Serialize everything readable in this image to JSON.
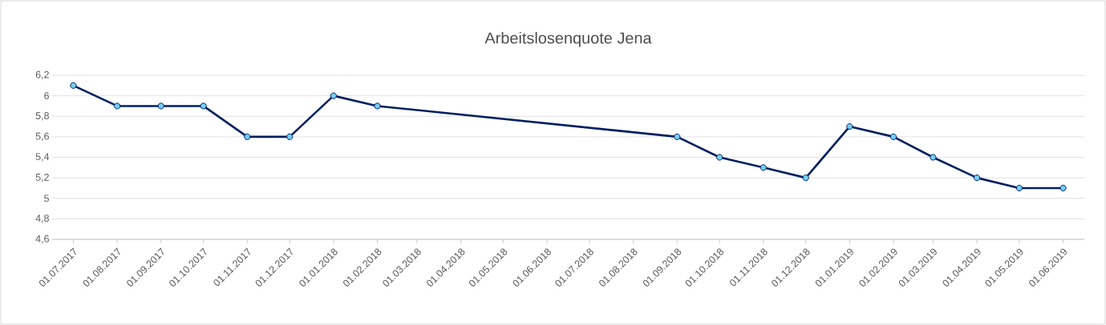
{
  "chart_data": {
    "type": "line",
    "title": "Arbeitslosenquote Jena",
    "x": [
      "2017-07-01",
      "2017-08-01",
      "2017-09-01",
      "2017-10-01",
      "2017-11-01",
      "2017-12-01",
      "2018-01-01",
      "2018-02-01",
      "2018-09-01",
      "2018-10-01",
      "2018-11-01",
      "2018-12-01",
      "2019-01-01",
      "2019-02-01",
      "2019-03-01",
      "2019-04-01",
      "2019-05-01",
      "2019-06-01"
    ],
    "series": [
      {
        "color": "#002060",
        "values": [
          6.1,
          5.9,
          5.9,
          5.9,
          5.6,
          5.6,
          6.0,
          5.9,
          5.6,
          5.4,
          5.3,
          5.2,
          5.7,
          5.6,
          5.4,
          5.2,
          5.1,
          5.1
        ]
      }
    ],
    "marker": "circle",
    "line_style": "solid",
    "grid": "y",
    "xlim": [
      "2017-06-16",
      "2019-06-16"
    ],
    "ylim": [
      4.6,
      6.2
    ],
    "xticks": [
      {
        "value": "2017-07-01",
        "label": "01.07.2017"
      },
      {
        "value": "2017-08-01",
        "label": "01.08.2017"
      },
      {
        "value": "2017-09-01",
        "label": "01.09.2017"
      },
      {
        "value": "2017-10-01",
        "label": "01.10.2017"
      },
      {
        "value": "2017-11-01",
        "label": "01.11.2017"
      },
      {
        "value": "2017-12-01",
        "label": "01.12.2017"
      },
      {
        "value": "2018-01-01",
        "label": "01.01.2018"
      },
      {
        "value": "2018-02-01",
        "label": "01.02.2018"
      },
      {
        "value": "2018-03-01",
        "label": "01.03.2018"
      },
      {
        "value": "2018-04-01",
        "label": "01.04.2018"
      },
      {
        "value": "2018-05-01",
        "label": "01.05.2018"
      },
      {
        "value": "2018-06-01",
        "label": "01.06.2018"
      },
      {
        "value": "2018-07-01",
        "label": "01.07.2018"
      },
      {
        "value": "2018-08-01",
        "label": "01.08.2018"
      },
      {
        "value": "2018-09-01",
        "label": "01.09.2018"
      },
      {
        "value": "2018-10-01",
        "label": "01.10.2018"
      },
      {
        "value": "2018-11-01",
        "label": "01.11.2018"
      },
      {
        "value": "2018-12-01",
        "label": "01.12.2018"
      },
      {
        "value": "2019-01-01",
        "label": "01.01.2019"
      },
      {
        "value": "2019-02-01",
        "label": "01.02.2019"
      },
      {
        "value": "2019-03-01",
        "label": "01.03.2019"
      },
      {
        "value": "2019-04-01",
        "label": "01.04.2019"
      },
      {
        "value": "2019-05-01",
        "label": "01.05.2019"
      },
      {
        "value": "2019-06-01",
        "label": "01.06.2019"
      }
    ],
    "yticks": [
      {
        "value": 4.6,
        "label": "4,6"
      },
      {
        "value": 4.8,
        "label": "4,8"
      },
      {
        "value": 5,
        "label": "5"
      },
      {
        "value": 5.2,
        "label": "5,2"
      },
      {
        "value": 5.4,
        "label": "5,4"
      },
      {
        "value": 5.6,
        "label": "5,6"
      },
      {
        "value": 5.8,
        "label": "5,8"
      },
      {
        "value": 6,
        "label": "6"
      },
      {
        "value": 6.2,
        "label": "6,2"
      }
    ]
  }
}
